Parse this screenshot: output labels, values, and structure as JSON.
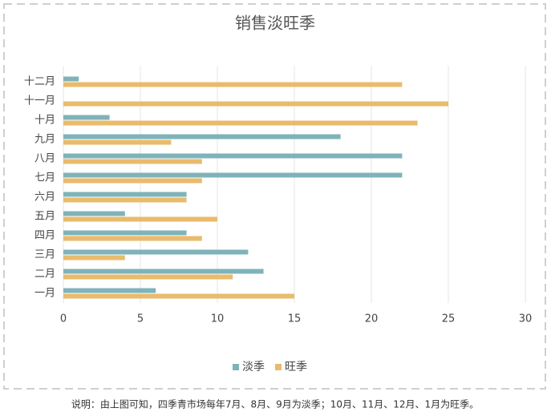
{
  "chart_data": {
    "type": "hbar",
    "title": "销售淡旺季",
    "categories": [
      "一月",
      "二月",
      "三月",
      "四月",
      "五月",
      "六月",
      "七月",
      "八月",
      "九月",
      "十月",
      "十一月",
      "十二月"
    ],
    "series": [
      {
        "name": "淡季",
        "color": "#7fb3b9",
        "values": [
          6,
          13,
          12,
          8,
          4,
          8,
          22,
          22,
          18,
          3,
          0,
          1
        ]
      },
      {
        "name": "旺季",
        "color": "#e9bb6c",
        "values": [
          15,
          11,
          4,
          9,
          10,
          8,
          9,
          9,
          7,
          23,
          25,
          22
        ]
      }
    ],
    "xlim": [
      0,
      30
    ],
    "xticks": [
      0,
      5,
      10,
      15,
      20,
      25,
      30
    ],
    "grid": true,
    "legend": "bottom"
  },
  "caption": "说明：由上图可知，四季青市场每年7月、8月、9月为淡季；10月、11月、12月、1月为旺季。"
}
